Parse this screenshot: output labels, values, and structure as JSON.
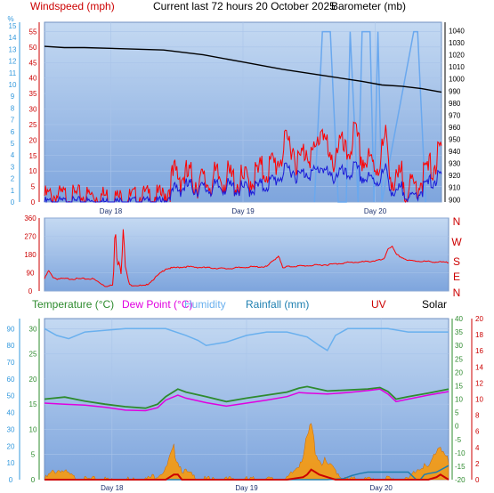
{
  "header": {
    "windspeed_title": "Windspeed (mph)",
    "center_title": "Current last 72 hours 20 October 2025",
    "barometer_title": "Barometer (mb)"
  },
  "colors": {
    "plot_bg_top": "#b9d1ee",
    "plot_bg_bottom": "#7fa6dc",
    "grid": "#9fbde6",
    "wind_gust": "#ff0000",
    "wind_avg": "#1a1ad8",
    "pressure": "#000000",
    "humidity_fill": "#6aa8ee",
    "direction": "#ff0000",
    "outdoor_humidity": "#6ab0ee",
    "temperature": "#2e8b2e",
    "dew_point": "#e000e0",
    "rainfall": "#1e7fb0",
    "solar": "#ff9900",
    "uv": "#cc0000",
    "red_axis": "#cc0000",
    "blue_axis": "#3399dd",
    "green_axis": "#2e8b2e"
  },
  "bottom_legend": {
    "temperature": "Temperature (°C)",
    "dew_point": "Dew Point (°C)",
    "humidity": "Humidity",
    "rainfall": "Rainfall (mm)",
    "uv": "UV",
    "solar": "Solar"
  },
  "compass": [
    "N",
    "W",
    "S",
    "E",
    "N"
  ],
  "chart_data": [
    {
      "type": "line",
      "x_ticks": [
        "Day 18",
        "Day 19",
        "Day 20"
      ],
      "left_axis_humidity_label": "%",
      "humidity_axis": [
        0,
        1,
        2,
        3,
        4,
        5,
        6,
        7,
        8,
        9,
        10,
        11,
        12,
        13,
        14,
        15
      ],
      "wind_axis": [
        0,
        5,
        10,
        15,
        20,
        25,
        30,
        35,
        40,
        45,
        50,
        55
      ],
      "pressure_axis": [
        900,
        910,
        920,
        930,
        940,
        950,
        960,
        970,
        980,
        990,
        1000,
        1010,
        1020,
        1030,
        1040
      ],
      "ylim_wind": [
        0,
        58
      ],
      "ylim_pressure": [
        898,
        1047
      ],
      "series": [
        {
          "name": "Windspeed (mph)",
          "role": "gust",
          "x": [
            0,
            0.05,
            0.1,
            0.15,
            0.2,
            0.25,
            0.3,
            0.33,
            0.36,
            0.4,
            0.45,
            0.5,
            0.55,
            0.58,
            0.6,
            0.62,
            0.64,
            0.66,
            0.68,
            0.7,
            0.72,
            0.74,
            0.76,
            0.78,
            0.8,
            0.82,
            0.84,
            0.86,
            0.88,
            0.9,
            0.92,
            0.94,
            0.96,
            0.98,
            1.0
          ],
          "values": [
            2,
            2,
            2,
            2,
            1,
            2,
            2,
            9,
            8,
            6,
            8,
            6,
            10,
            12,
            16,
            20,
            12,
            18,
            14,
            26,
            10,
            20,
            14,
            22,
            14,
            12,
            12,
            20,
            4,
            8,
            3,
            6,
            9,
            12,
            16
          ]
        },
        {
          "name": "Windspeed (mph)",
          "role": "average",
          "x": [
            0,
            0.05,
            0.1,
            0.15,
            0.2,
            0.25,
            0.3,
            0.33,
            0.36,
            0.4,
            0.45,
            0.5,
            0.55,
            0.58,
            0.6,
            0.62,
            0.64,
            0.66,
            0.68,
            0.7,
            0.72,
            0.74,
            0.76,
            0.78,
            0.8,
            0.82,
            0.84,
            0.86,
            0.88,
            0.9,
            0.92,
            0.94,
            0.96,
            0.98,
            1.0
          ],
          "values": [
            0,
            0,
            0,
            0,
            0,
            0,
            0,
            4,
            5,
            4,
            5,
            4,
            5,
            7,
            9,
            11,
            8,
            10,
            9,
            12,
            7,
            10,
            8,
            11,
            8,
            7,
            7,
            10,
            2,
            4,
            1,
            3,
            5,
            7,
            8
          ]
        },
        {
          "name": "Barometer (mb)",
          "role": "pressure",
          "x": [
            0,
            0.05,
            0.1,
            0.2,
            0.3,
            0.4,
            0.5,
            0.6,
            0.7,
            0.8,
            0.85,
            0.9,
            0.95,
            1.0
          ],
          "values": [
            1027,
            1026,
            1026,
            1025,
            1024,
            1020,
            1014,
            1008,
            1003,
            998,
            995,
            994,
            992,
            989
          ]
        },
        {
          "name": "Humidity",
          "role": "indoor-humidity-spikes",
          "x": [
            0.68,
            0.7,
            0.72,
            0.74,
            0.76,
            0.77,
            0.79,
            0.8,
            0.82,
            0.83,
            0.84,
            0.85,
            0.93,
            0.94,
            0.96
          ],
          "values": [
            0,
            14.5,
            14.5,
            0,
            0,
            14.5,
            0,
            14.5,
            14.5,
            0,
            14.5,
            0,
            14.5,
            14.5,
            0
          ]
        }
      ]
    },
    {
      "type": "line",
      "x_ticks": [],
      "direction_axis": [
        0,
        90,
        180,
        270,
        360
      ],
      "ylim": [
        0,
        360
      ],
      "series": [
        {
          "name": "Wind direction",
          "x": [
            0,
            0.01,
            0.02,
            0.03,
            0.08,
            0.12,
            0.15,
            0.16,
            0.17,
            0.175,
            0.18,
            0.185,
            0.19,
            0.195,
            0.2,
            0.21,
            0.25,
            0.3,
            0.35,
            0.4,
            0.45,
            0.5,
            0.55,
            0.58,
            0.59,
            0.6,
            0.65,
            0.7,
            0.75,
            0.8,
            0.84,
            0.85,
            0.86,
            0.87,
            0.9,
            0.95,
            1.0
          ],
          "values": [
            60,
            100,
            70,
            60,
            60,
            60,
            25,
            25,
            30,
            340,
            120,
            150,
            80,
            320,
            120,
            30,
            25,
            110,
            120,
            115,
            110,
            118,
            120,
            175,
            110,
            120,
            125,
            130,
            140,
            145,
            155,
            210,
            220,
            180,
            150,
            145,
            140
          ]
        }
      ]
    },
    {
      "type": "line",
      "x_ticks": [
        "Day 18",
        "Day 19",
        "Day 20"
      ],
      "humidity_axis": [
        0,
        10,
        20,
        30,
        40,
        50,
        60,
        70,
        80,
        90
      ],
      "temp_axis": [
        0,
        5,
        10,
        15,
        20,
        25,
        30
      ],
      "rain_axis_right": [
        -20,
        -15,
        -10,
        -5,
        0,
        5,
        10,
        15,
        20,
        25,
        30,
        35,
        40
      ],
      "uv_axis": [
        0,
        2,
        4,
        6,
        8,
        10,
        12,
        14,
        16,
        18,
        20
      ],
      "ylim_temp": [
        0,
        32
      ],
      "series": [
        {
          "name": "Humidity",
          "x": [
            0,
            0.03,
            0.06,
            0.1,
            0.2,
            0.3,
            0.35,
            0.38,
            0.4,
            0.45,
            0.5,
            0.55,
            0.6,
            0.65,
            0.68,
            0.7,
            0.72,
            0.75,
            0.8,
            0.85,
            0.9,
            0.95,
            1.0
          ],
          "values": [
            90,
            86,
            84,
            88,
            90,
            90,
            86,
            83,
            80,
            82,
            86,
            88,
            88,
            85,
            80,
            77,
            86,
            90,
            90,
            90,
            88,
            88,
            88
          ]
        },
        {
          "name": "Temperature (°C)",
          "x": [
            0,
            0.05,
            0.1,
            0.15,
            0.2,
            0.25,
            0.28,
            0.3,
            0.33,
            0.35,
            0.4,
            0.45,
            0.5,
            0.55,
            0.6,
            0.63,
            0.65,
            0.7,
            0.75,
            0.8,
            0.83,
            0.85,
            0.87,
            0.9,
            0.95,
            1.0
          ],
          "values": [
            16,
            16.4,
            15.6,
            15,
            14.5,
            14.2,
            15,
            16.5,
            18,
            17.4,
            16.5,
            15.5,
            16.2,
            16.8,
            17.4,
            18.2,
            18.5,
            17.6,
            17.8,
            18.0,
            18.3,
            17.5,
            16.0,
            16.5,
            17.2,
            18.0
          ]
        },
        {
          "name": "Dew Point (°C)",
          "x": [
            0,
            0.05,
            0.1,
            0.15,
            0.2,
            0.25,
            0.28,
            0.3,
            0.33,
            0.35,
            0.4,
            0.45,
            0.5,
            0.55,
            0.6,
            0.63,
            0.65,
            0.7,
            0.75,
            0.8,
            0.83,
            0.85,
            0.87,
            0.9,
            0.95,
            1.0
          ],
          "values": [
            15.2,
            15,
            14.8,
            14.4,
            13.8,
            13.7,
            14.3,
            15.8,
            16.8,
            16.2,
            15.3,
            14.6,
            15.2,
            15.8,
            16.5,
            17.3,
            17.2,
            17.0,
            17.3,
            17.7,
            18.0,
            17.0,
            15.5,
            16.0,
            16.8,
            17.5
          ]
        },
        {
          "name": "Rainfall (mm)",
          "x": [
            0,
            0.7,
            0.74,
            0.76,
            0.78,
            0.8,
            0.82,
            0.84,
            0.85,
            0.9,
            0.92,
            0.93,
            0.94,
            0.95,
            0.97,
            1.0
          ],
          "values": [
            0,
            0,
            0.2,
            0.8,
            1.2,
            1.5,
            1.5,
            1.5,
            1.5,
            1.5,
            0,
            0,
            1.0,
            1.2,
            1.5,
            2.8
          ]
        },
        {
          "name": "Solar",
          "x": [
            0,
            0.02,
            0.04,
            0.06,
            0.08,
            0.1,
            0.12,
            0.25,
            0.28,
            0.3,
            0.31,
            0.32,
            0.34,
            0.36,
            0.38,
            0.4,
            0.6,
            0.62,
            0.64,
            0.65,
            0.66,
            0.67,
            0.68,
            0.7,
            0.72,
            0.74,
            0.75,
            0.9,
            0.92,
            0.94,
            0.95,
            0.96,
            0.97,
            0.98,
            1.0
          ],
          "values": [
            0,
            1.5,
            2,
            1,
            0,
            0,
            0,
            0,
            1,
            2,
            4,
            6,
            2,
            1,
            0,
            0,
            0,
            2,
            5,
            8,
            11,
            6,
            4,
            3,
            2,
            0,
            0,
            0,
            2,
            3,
            2,
            4,
            6,
            7,
            3
          ]
        },
        {
          "name": "UV",
          "x": [
            0,
            0.3,
            0.31,
            0.32,
            0.33,
            0.34,
            0.6,
            0.64,
            0.65,
            0.66,
            0.67,
            0.68,
            0.7,
            0.72,
            0.95,
            0.97,
            0.98,
            1.0
          ],
          "values": [
            0,
            0,
            0.5,
            1,
            1,
            0,
            0,
            0.5,
            1,
            2,
            1.5,
            1,
            0.5,
            0,
            0,
            0.5,
            1,
            0
          ]
        }
      ]
    }
  ]
}
